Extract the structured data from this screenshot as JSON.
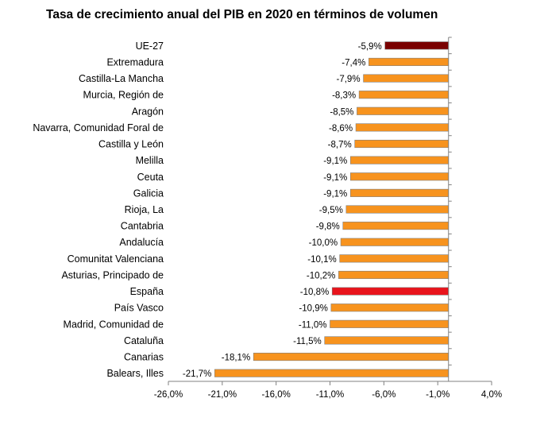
{
  "chart_data": {
    "type": "bar",
    "orientation": "horizontal",
    "title": "Tasa de crecimiento anual del PIB en 2020 en términos de volumen",
    "categories": [
      "UE-27",
      "Extremadura",
      "Castilla-La Mancha",
      "Murcia, Región de",
      "Aragón",
      "Navarra, Comunidad Foral de",
      "Castilla y León",
      "Melilla",
      "Ceuta",
      "Galicia",
      "Rioja, La",
      "Cantabria",
      "Andalucía",
      "Comunitat Valenciana",
      "Asturias, Principado de",
      "España",
      "País Vasco",
      "Madrid, Comunidad de",
      "Cataluña",
      "Canarias",
      "Balears, Illes"
    ],
    "values": [
      -5.9,
      -7.4,
      -7.9,
      -8.3,
      -8.5,
      -8.6,
      -8.7,
      -9.1,
      -9.1,
      -9.1,
      -9.5,
      -9.8,
      -10.0,
      -10.1,
      -10.2,
      -10.8,
      -10.9,
      -11.0,
      -11.5,
      -18.1,
      -21.7
    ],
    "data_labels": [
      "-5,9%",
      "-7,4%",
      "-7,9%",
      "-8,3%",
      "-8,5%",
      "-8,6%",
      "-8,7%",
      "-9,1%",
      "-9,1%",
      "-9,1%",
      "-9,5%",
      "-9,8%",
      "-10,0%",
      "-10,1%",
      "-10,2%",
      "-10,8%",
      "-10,9%",
      "-11,0%",
      "-11,5%",
      "-18,1%",
      "-21,7%"
    ],
    "bar_colors": [
      "#7a0000",
      "#f7931e",
      "#f7931e",
      "#f7931e",
      "#f7931e",
      "#f7931e",
      "#f7931e",
      "#f7931e",
      "#f7931e",
      "#f7931e",
      "#f7931e",
      "#f7931e",
      "#f7931e",
      "#f7931e",
      "#f7931e",
      "#e8141c",
      "#f7931e",
      "#f7931e",
      "#f7931e",
      "#f7931e",
      "#f7931e"
    ],
    "x_ticks": [
      -26,
      -21,
      -16,
      -11,
      -6,
      -1,
      4
    ],
    "x_tick_labels": [
      "-26,0%",
      "-21,0%",
      "-16,0%",
      "-11,0%",
      "-6,0%",
      "-1,0%",
      "4,0%"
    ],
    "xlim": [
      -26,
      4
    ],
    "baseline": 0,
    "xlabel": "",
    "ylabel": "",
    "legend": "none",
    "grid": false
  }
}
